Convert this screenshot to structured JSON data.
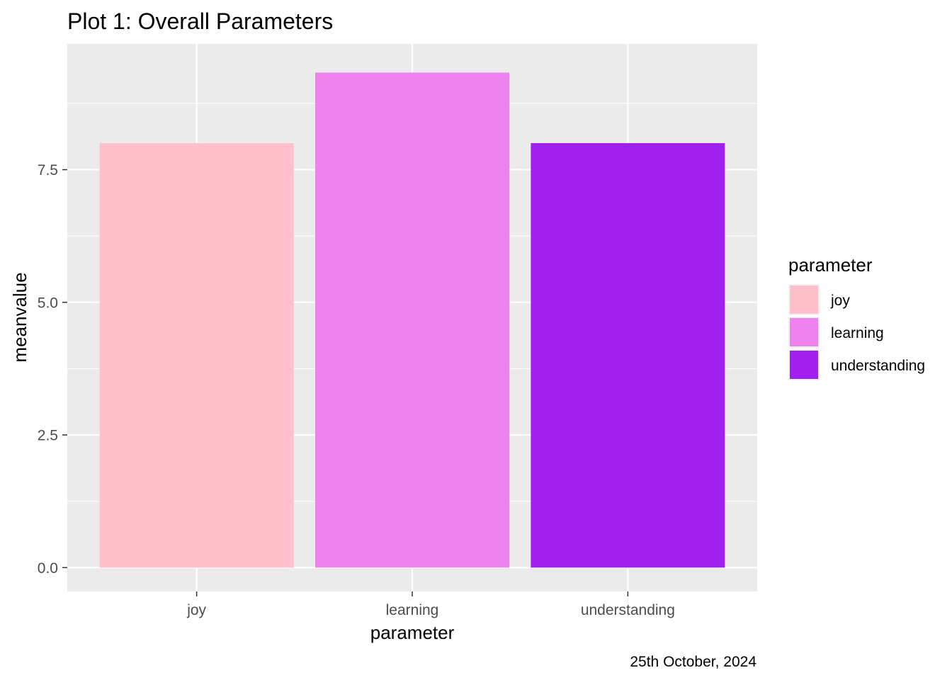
{
  "chart_data": {
    "type": "bar",
    "title": "Plot 1: Overall Parameters",
    "xlabel": "parameter",
    "ylabel": "meanvalue",
    "caption": "25th October, 2024",
    "categories": [
      "joy",
      "learning",
      "understanding"
    ],
    "values": [
      8.0,
      9.33,
      8.0
    ],
    "colors": [
      "#FFC0CB",
      "#EE82EE",
      "#A020F0"
    ],
    "ylim": [
      -0.45,
      9.87
    ],
    "yticks": [
      0.0,
      2.5,
      5.0,
      7.5
    ],
    "ytick_labels": [
      "0.0",
      "2.5",
      "5.0",
      "7.5"
    ],
    "grid": true,
    "panel_background": "#EBEBEB",
    "legend": {
      "title": "parameter",
      "placement": "right",
      "entries": [
        "joy",
        "learning",
        "understanding"
      ]
    }
  }
}
